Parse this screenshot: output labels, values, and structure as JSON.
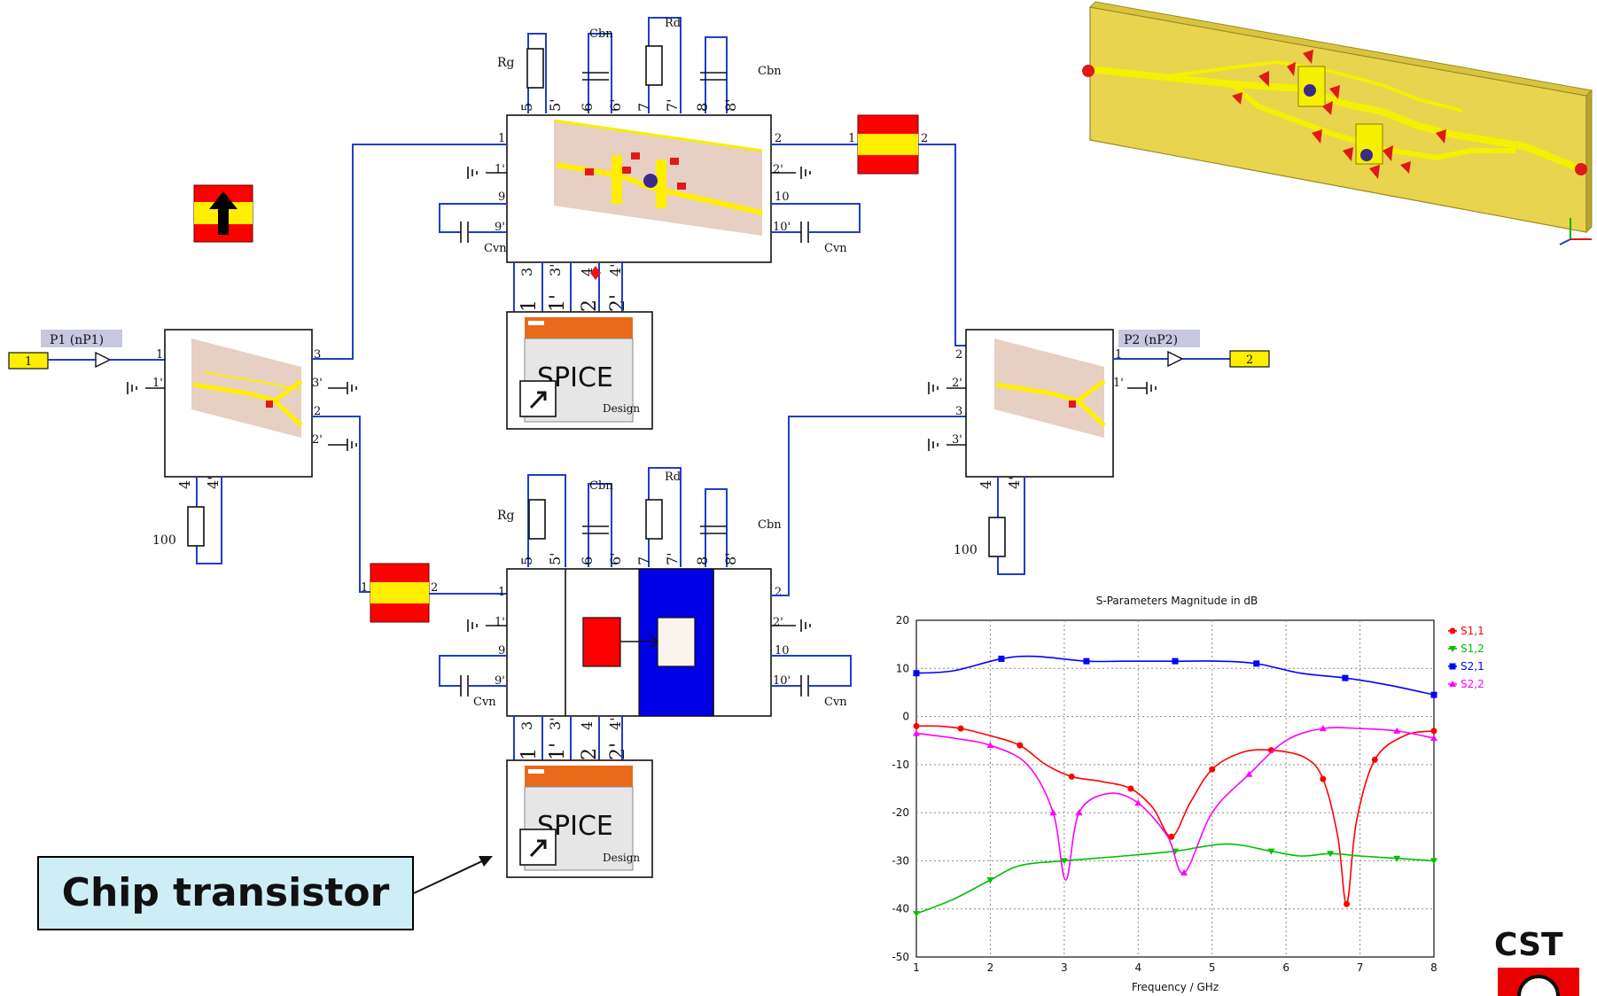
{
  "callout": {
    "text": "Chip transistor"
  },
  "logo": {
    "text": "CST"
  },
  "ports": {
    "p1": {
      "label": "P1 (nP1)",
      "number": "1"
    },
    "p2": {
      "label": "P2 (nP2)",
      "number": "2"
    }
  },
  "components": {
    "rg": "Rg",
    "cbn": "Cbn",
    "rd": "Rd",
    "cvn": "Cvn",
    "r100": "100"
  },
  "spice": {
    "title": "SPICE",
    "subtitle": "Design"
  },
  "chart_data": {
    "type": "line",
    "title": "S-Parameters Magnitude in dB",
    "xlabel": "Frequency / GHz",
    "ylabel": "",
    "xlim": [
      1,
      8
    ],
    "ylim": [
      -50,
      20
    ],
    "xticks": [
      1,
      2,
      3,
      4,
      5,
      6,
      7,
      8
    ],
    "yticks": [
      20,
      10,
      0,
      -10,
      -20,
      -30,
      -40,
      -50
    ],
    "grid": true,
    "legend": "top-right",
    "series": [
      {
        "name": "S1,1",
        "color": "#ff0000",
        "marker": "circle",
        "x": [
          1,
          1.3,
          1.6,
          2.0,
          2.4,
          2.75,
          3.1,
          3.5,
          3.9,
          4.2,
          4.45,
          4.7,
          5.0,
          5.4,
          5.8,
          6.25,
          6.5,
          6.7,
          6.82,
          6.95,
          7.2,
          7.6,
          8.0
        ],
        "y": [
          -2,
          -2,
          -2.5,
          -4,
          -6,
          -10,
          -12.5,
          -13.5,
          -15,
          -19,
          -25,
          -18,
          -11,
          -7.5,
          -7,
          -8.5,
          -13,
          -25,
          -39,
          -22,
          -9,
          -4,
          -3
        ]
      },
      {
        "name": "S1,2",
        "color": "#00c000",
        "marker": "triangle-down",
        "x": [
          1,
          1.5,
          2.0,
          2.4,
          3.0,
          3.8,
          4.5,
          5.2,
          5.8,
          6.2,
          6.6,
          7.0,
          7.5,
          8.0
        ],
        "y": [
          -41,
          -38,
          -34,
          -31,
          -30,
          -29,
          -28,
          -26.5,
          -28,
          -29,
          -28.5,
          -29,
          -29.5,
          -30
        ]
      },
      {
        "name": "S2,1",
        "color": "#0000ff",
        "marker": "square",
        "x": [
          1,
          1.5,
          2.15,
          2.6,
          3.3,
          3.8,
          4.5,
          5.1,
          5.6,
          6.2,
          6.8,
          7.4,
          8.0
        ],
        "y": [
          9,
          9.5,
          12,
          12.5,
          11.5,
          11.5,
          11.5,
          11.5,
          11,
          9,
          8,
          6.5,
          4.5
        ]
      },
      {
        "name": "S2,2",
        "color": "#ff00ff",
        "marker": "triangle-up",
        "x": [
          1,
          1.5,
          2.0,
          2.5,
          2.85,
          3.02,
          3.2,
          3.6,
          4.0,
          4.4,
          4.62,
          5.0,
          5.5,
          6.0,
          6.5,
          7.0,
          7.5,
          8.0
        ],
        "y": [
          -3.5,
          -4.5,
          -6,
          -10,
          -20,
          -34,
          -20,
          -16,
          -18,
          -25,
          -32.5,
          -20,
          -12,
          -5,
          -2.5,
          -2.5,
          -3,
          -4.5
        ]
      }
    ]
  }
}
